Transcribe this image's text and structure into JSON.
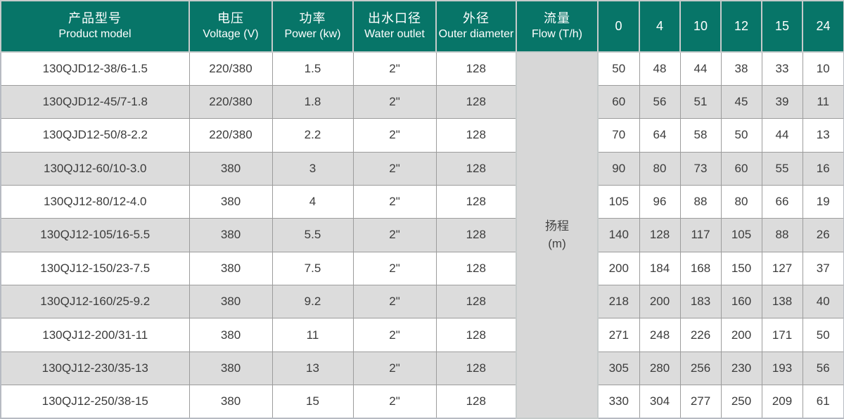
{
  "colors": {
    "header_bg": "#077568",
    "header_text": "#ffffff",
    "alt_row_bg": "#dcdcdc",
    "row_bg": "#ffffff",
    "merged_cell_bg": "#d7d7d7",
    "body_border": "#9c9c9c",
    "header_border": "#c6cbcb",
    "body_text": "#3c3c3c"
  },
  "table": {
    "header": {
      "columns": [
        {
          "key": "model",
          "zh": "产品型号",
          "en": "Product model"
        },
        {
          "key": "voltage",
          "zh": "电压",
          "en": "Voltage (V)"
        },
        {
          "key": "power",
          "zh": "功率",
          "en": "Power (kw)"
        },
        {
          "key": "outlet",
          "zh": "出水口径",
          "en": "Water outlet"
        },
        {
          "key": "outer",
          "zh": "外径",
          "en": "Outer diameter"
        },
        {
          "key": "flow",
          "zh": "流量",
          "en": "Flow (T/h)"
        }
      ],
      "flow_rates": [
        "0",
        "4",
        "10",
        "12",
        "15",
        "24"
      ]
    },
    "merged_head_cell": {
      "line1": "扬程",
      "line2": "(m)"
    },
    "rows": [
      {
        "model": "130QJD12-38/6-1.5",
        "voltage": "220/380",
        "power": "1.5",
        "outlet": "2\"",
        "outer": "128",
        "head": [
          "50",
          "48",
          "44",
          "38",
          "33",
          "10"
        ]
      },
      {
        "model": "130QJD12-45/7-1.8",
        "voltage": "220/380",
        "power": "1.8",
        "outlet": "2\"",
        "outer": "128",
        "head": [
          "60",
          "56",
          "51",
          "45",
          "39",
          "11"
        ]
      },
      {
        "model": "130QJD12-50/8-2.2",
        "voltage": "220/380",
        "power": "2.2",
        "outlet": "2\"",
        "outer": "128",
        "head": [
          "70",
          "64",
          "58",
          "50",
          "44",
          "13"
        ]
      },
      {
        "model": "130QJ12-60/10-3.0",
        "voltage": "380",
        "power": "3",
        "outlet": "2\"",
        "outer": "128",
        "head": [
          "90",
          "80",
          "73",
          "60",
          "55",
          "16"
        ]
      },
      {
        "model": "130QJ12-80/12-4.0",
        "voltage": "380",
        "power": "4",
        "outlet": "2\"",
        "outer": "128",
        "head": [
          "105",
          "96",
          "88",
          "80",
          "66",
          "19"
        ]
      },
      {
        "model": "130QJ12-105/16-5.5",
        "voltage": "380",
        "power": "5.5",
        "outlet": "2\"",
        "outer": "128",
        "head": [
          "140",
          "128",
          "117",
          "105",
          "88",
          "26"
        ]
      },
      {
        "model": "130QJ12-150/23-7.5",
        "voltage": "380",
        "power": "7.5",
        "outlet": "2\"",
        "outer": "128",
        "head": [
          "200",
          "184",
          "168",
          "150",
          "127",
          "37"
        ]
      },
      {
        "model": "130QJ12-160/25-9.2",
        "voltage": "380",
        "power": "9.2",
        "outlet": "2\"",
        "outer": "128",
        "head": [
          "218",
          "200",
          "183",
          "160",
          "138",
          "40"
        ]
      },
      {
        "model": "130QJ12-200/31-11",
        "voltage": "380",
        "power": "11",
        "outlet": "2\"",
        "outer": "128",
        "head": [
          "271",
          "248",
          "226",
          "200",
          "171",
          "50"
        ]
      },
      {
        "model": "130QJ12-230/35-13",
        "voltage": "380",
        "power": "13",
        "outlet": "2\"",
        "outer": "128",
        "head": [
          "305",
          "280",
          "256",
          "230",
          "193",
          "56"
        ]
      },
      {
        "model": "130QJ12-250/38-15",
        "voltage": "380",
        "power": "15",
        "outlet": "2\"",
        "outer": "128",
        "head": [
          "330",
          "304",
          "277",
          "250",
          "209",
          "61"
        ]
      }
    ]
  },
  "chart_data": {
    "type": "table",
    "title": "Submersible pump model specifications: head (扬程, m) vs flow (流量, T/h)",
    "x": [
      0,
      4,
      10,
      12,
      15,
      24
    ],
    "xlabel": "Flow (T/h)",
    "ylabel": "Head 扬程 (m)",
    "series": [
      {
        "name": "130QJD12-38/6-1.5",
        "voltage_V": "220/380",
        "power_kw": 1.5,
        "water_outlet": "2\"",
        "outer_diameter": 128,
        "values": [
          50,
          48,
          44,
          38,
          33,
          10
        ]
      },
      {
        "name": "130QJD12-45/7-1.8",
        "voltage_V": "220/380",
        "power_kw": 1.8,
        "water_outlet": "2\"",
        "outer_diameter": 128,
        "values": [
          60,
          56,
          51,
          45,
          39,
          11
        ]
      },
      {
        "name": "130QJD12-50/8-2.2",
        "voltage_V": "220/380",
        "power_kw": 2.2,
        "water_outlet": "2\"",
        "outer_diameter": 128,
        "values": [
          70,
          64,
          58,
          50,
          44,
          13
        ]
      },
      {
        "name": "130QJ12-60/10-3.0",
        "voltage_V": "380",
        "power_kw": 3,
        "water_outlet": "2\"",
        "outer_diameter": 128,
        "values": [
          90,
          80,
          73,
          60,
          55,
          16
        ]
      },
      {
        "name": "130QJ12-80/12-4.0",
        "voltage_V": "380",
        "power_kw": 4,
        "water_outlet": "2\"",
        "outer_diameter": 128,
        "values": [
          105,
          96,
          88,
          80,
          66,
          19
        ]
      },
      {
        "name": "130QJ12-105/16-5.5",
        "voltage_V": "380",
        "power_kw": 5.5,
        "water_outlet": "2\"",
        "outer_diameter": 128,
        "values": [
          140,
          128,
          117,
          105,
          88,
          26
        ]
      },
      {
        "name": "130QJ12-150/23-7.5",
        "voltage_V": "380",
        "power_kw": 7.5,
        "water_outlet": "2\"",
        "outer_diameter": 128,
        "values": [
          200,
          184,
          168,
          150,
          127,
          37
        ]
      },
      {
        "name": "130QJ12-160/25-9.2",
        "voltage_V": "380",
        "power_kw": 9.2,
        "water_outlet": "2\"",
        "outer_diameter": 128,
        "values": [
          218,
          200,
          183,
          160,
          138,
          40
        ]
      },
      {
        "name": "130QJ12-200/31-11",
        "voltage_V": "380",
        "power_kw": 11,
        "water_outlet": "2\"",
        "outer_diameter": 128,
        "values": [
          271,
          248,
          226,
          200,
          171,
          50
        ]
      },
      {
        "name": "130QJ12-230/35-13",
        "voltage_V": "380",
        "power_kw": 13,
        "water_outlet": "2\"",
        "outer_diameter": 128,
        "values": [
          305,
          280,
          256,
          230,
          193,
          56
        ]
      },
      {
        "name": "130QJ12-250/38-15",
        "voltage_V": "380",
        "power_kw": 15,
        "water_outlet": "2\"",
        "outer_diameter": 128,
        "values": [
          330,
          304,
          277,
          250,
          209,
          61
        ]
      }
    ]
  }
}
